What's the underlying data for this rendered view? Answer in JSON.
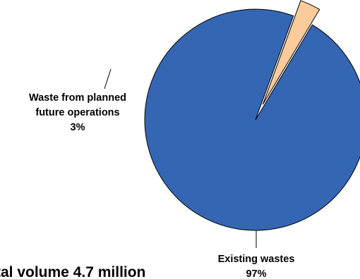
{
  "chart_data": {
    "type": "pie",
    "title": "",
    "caption": "tal volume 4.7 million",
    "slices": [
      {
        "label_lines": [
          "Existing wastes",
          "97%"
        ],
        "value": 97,
        "color": "#3566B4",
        "exploded": false
      },
      {
        "label_lines": [
          "Waste from planned",
          "future operations",
          "3%"
        ],
        "value": 3,
        "color": "#FBCB9C",
        "exploded": true
      }
    ]
  }
}
